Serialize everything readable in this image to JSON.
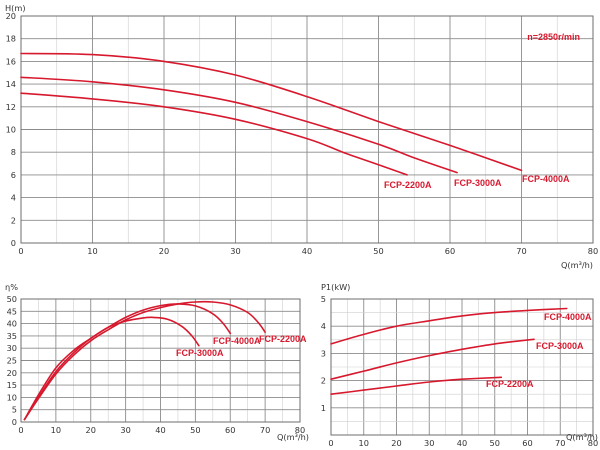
{
  "chart_data": [
    {
      "type": "line",
      "xlabel": "Q(m³/h)",
      "ylabel": "H(m)",
      "xlim": [
        0,
        80
      ],
      "ylim": [
        0,
        20
      ],
      "xticks": [
        0,
        10,
        20,
        30,
        40,
        50,
        60,
        70,
        80
      ],
      "yticks": [
        0,
        2,
        4,
        6,
        8,
        10,
        12,
        14,
        16,
        18,
        20
      ],
      "annotation": "n=2850r/min",
      "grid": true,
      "series": [
        {
          "name": "FCP-2200A",
          "x": [
            0,
            10,
            20,
            30,
            40,
            45,
            50,
            54
          ],
          "y": [
            13.2,
            12.7,
            12.0,
            10.9,
            9.2,
            8.0,
            6.9,
            6.0
          ]
        },
        {
          "name": "FCP-3000A",
          "x": [
            0,
            10,
            20,
            30,
            40,
            50,
            55,
            61
          ],
          "y": [
            14.6,
            14.2,
            13.5,
            12.4,
            10.7,
            8.7,
            7.5,
            6.2
          ]
        },
        {
          "name": "FCP-4000A",
          "x": [
            0,
            10,
            20,
            30,
            40,
            50,
            60,
            70
          ],
          "y": [
            16.7,
            16.6,
            16.0,
            14.8,
            12.9,
            10.7,
            8.6,
            6.4
          ]
        }
      ]
    },
    {
      "type": "line",
      "xlabel": "Q(m³/h)",
      "ylabel": "η%",
      "xlim": [
        0,
        80
      ],
      "ylim": [
        0,
        50
      ],
      "xticks": [
        0,
        10,
        20,
        30,
        40,
        50,
        60,
        70,
        80
      ],
      "yticks": [
        0,
        5,
        10,
        15,
        20,
        25,
        30,
        35,
        40,
        45,
        50
      ],
      "grid": true,
      "series": [
        {
          "name": "FCP-2200A",
          "x": [
            1,
            5,
            10,
            15,
            20,
            25,
            30,
            35,
            38,
            42,
            46,
            49,
            51
          ],
          "y": [
            1,
            11,
            22,
            29,
            34,
            38.5,
            41,
            42.3,
            42.5,
            41.8,
            39,
            35,
            31
          ]
        },
        {
          "name": "FCP-3000A",
          "x": [
            1,
            5,
            10,
            15,
            20,
            25,
            30,
            35,
            40,
            45,
            50,
            55,
            58,
            60
          ],
          "y": [
            1,
            10,
            20.5,
            28,
            34,
            38.5,
            42.5,
            45.5,
            47.3,
            48,
            47.2,
            44,
            40,
            36
          ]
        },
        {
          "name": "FCP-4000A",
          "x": [
            1,
            5,
            10,
            15,
            20,
            25,
            30,
            35,
            40,
            45,
            50,
            55,
            60,
            65,
            68,
            70
          ],
          "y": [
            1,
            9.5,
            19.5,
            27,
            33,
            37.5,
            41.5,
            44.5,
            46.5,
            48,
            48.8,
            48.8,
            47.6,
            44.5,
            40.5,
            36.5
          ]
        }
      ],
      "labels": [
        "FCP-3000A",
        "FCP-4000A",
        "FCP-2200A"
      ]
    },
    {
      "type": "line",
      "xlabel": "Q(m³/h)",
      "ylabel": "P1(kW)",
      "xlim": [
        0,
        80
      ],
      "ylim": [
        0,
        5
      ],
      "xticks": [
        0,
        10,
        20,
        30,
        40,
        50,
        60,
        70,
        80
      ],
      "yticks": [
        1,
        2,
        3,
        4,
        5
      ],
      "grid": true,
      "series": [
        {
          "name": "FCP-4000A",
          "x": [
            0,
            10,
            20,
            30,
            40,
            50,
            60,
            72
          ],
          "y": [
            3.35,
            3.7,
            4.0,
            4.2,
            4.38,
            4.5,
            4.58,
            4.65
          ]
        },
        {
          "name": "FCP-3000A",
          "x": [
            0,
            10,
            20,
            30,
            40,
            50,
            62
          ],
          "y": [
            2.05,
            2.35,
            2.65,
            2.92,
            3.15,
            3.35,
            3.52
          ]
        },
        {
          "name": "FCP-2200A",
          "x": [
            0,
            10,
            20,
            30,
            40,
            52
          ],
          "y": [
            1.5,
            1.65,
            1.8,
            1.95,
            2.05,
            2.12
          ]
        }
      ]
    }
  ]
}
